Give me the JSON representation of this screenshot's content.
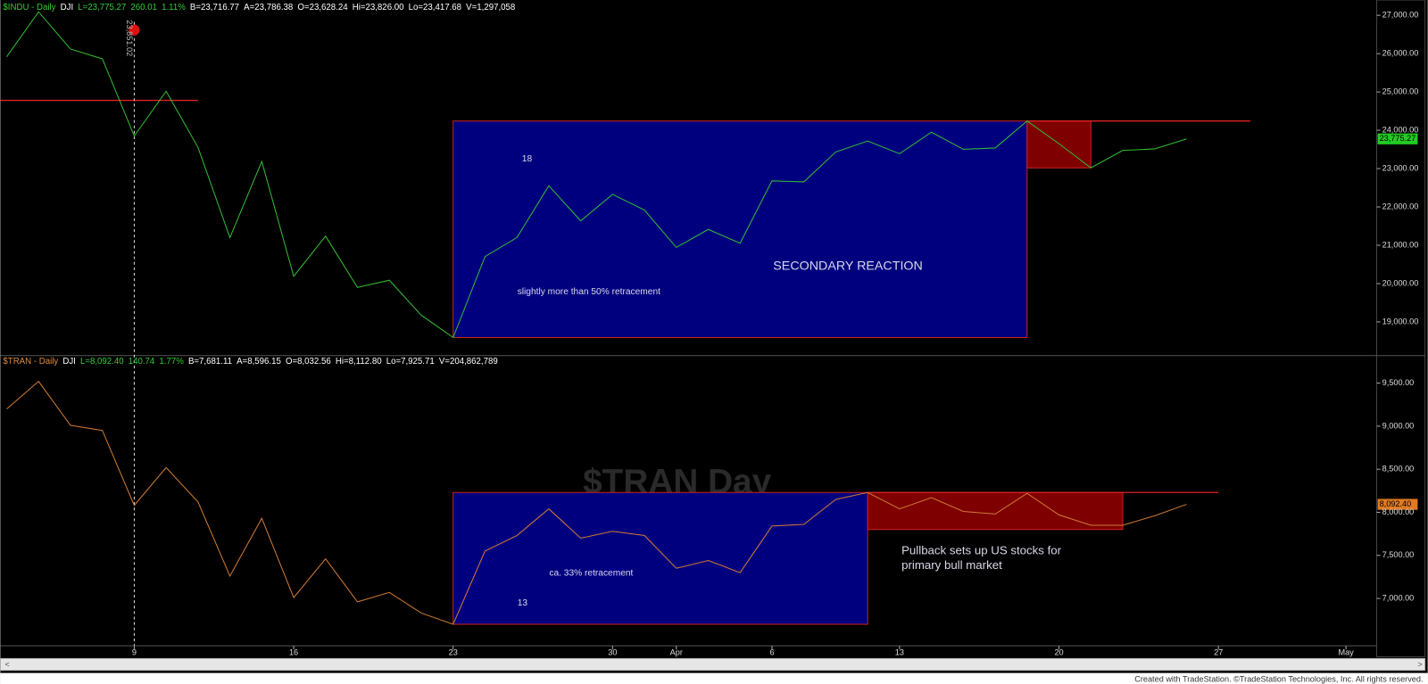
{
  "chart_data": [
    {
      "type": "line",
      "header": [
        {
          "text": "$INDU - Daily",
          "color": "#33cc33"
        },
        {
          "text": "DJI",
          "color": "#ffffff"
        },
        {
          "text": "L=23,775.27",
          "color": "#33cc33"
        },
        {
          "text": "260.01",
          "color": "#33cc33"
        },
        {
          "text": "1.11%",
          "color": "#33cc33"
        },
        {
          "text": "B=23,716.77",
          "color": "#ffffff"
        },
        {
          "text": "A=23,786.38",
          "color": "#ffffff"
        },
        {
          "text": "O=23,628.24",
          "color": "#ffffff"
        },
        {
          "text": "Hi=23,826.00",
          "color": "#ffffff"
        },
        {
          "text": "Lo=23,417.68",
          "color": "#ffffff"
        },
        {
          "text": "V=1,297,058",
          "color": "#ffffff"
        }
      ],
      "categories": [
        null,
        null,
        null,
        null,
        "9",
        null,
        null,
        null,
        null,
        "16",
        null,
        null,
        null,
        null,
        "23",
        null,
        null,
        null,
        null,
        "30",
        null,
        "Apr",
        null,
        null,
        "6",
        null,
        null,
        null,
        "13",
        null,
        null,
        null,
        null,
        "20",
        null,
        null,
        null,
        null,
        "27",
        null,
        null,
        null,
        "May"
      ],
      "series": [
        {
          "name": "$INDU",
          "color": "#33bb33",
          "values": [
            25917,
            27091,
            26121,
            25865,
            23851,
            25018,
            23553,
            21200,
            23185,
            20189,
            21237,
            19899,
            20087,
            19174,
            18592,
            20705,
            21200,
            22552,
            21637,
            22328,
            21917,
            20944,
            21413,
            21053,
            22680,
            22654,
            23434,
            23719,
            23390,
            23950,
            23504,
            23538,
            24242,
            23650,
            23019,
            23475,
            23515,
            23775.27,
            null,
            null,
            null,
            null,
            null
          ],
          "last_label": "23,775.27",
          "label_color": "#22cc22"
        }
      ],
      "ylim": [
        18190,
        27400
      ],
      "yticks": [
        {
          "value": 19000,
          "label": "19,000.00"
        },
        {
          "value": 20000,
          "label": "20,000.00"
        },
        {
          "value": 21000,
          "label": "21,000.00"
        },
        {
          "value": 22000,
          "label": "22,000.00"
        },
        {
          "value": 23000,
          "label": "23,000.00"
        },
        {
          "value": 24000,
          "label": "24,000.00"
        },
        {
          "value": 25000,
          "label": "25,000.00"
        },
        {
          "value": 26000,
          "label": "26,000.00"
        },
        {
          "value": 27000,
          "label": "27,000.00"
        }
      ],
      "boxes": [
        {
          "x": [
            14,
            32
          ],
          "y": [
            18592,
            24242
          ],
          "color": "#00007f"
        },
        {
          "x": [
            32,
            34
          ],
          "y": [
            23019,
            24242
          ],
          "color": "#7f0000"
        }
      ],
      "lines": [
        {
          "value": 24780,
          "x": [
            0,
            6
          ],
          "color": "#dd2222"
        },
        {
          "value": 24242,
          "x": [
            32,
            39
          ],
          "color": "#dd2222"
        }
      ],
      "annotations": [
        "18",
        "slightly more than 50% retracement",
        "SECONDARY REACTION"
      ],
      "cursor_label": "23,851.02"
    },
    {
      "type": "line",
      "header": [
        {
          "text": "$TRAN - Daily",
          "color": "#e08a3c"
        },
        {
          "text": "DJI",
          "color": "#ffffff"
        },
        {
          "text": "L=8,092.40",
          "color": "#33cc33"
        },
        {
          "text": "140.74",
          "color": "#33cc33"
        },
        {
          "text": "1.77%",
          "color": "#33cc33"
        },
        {
          "text": "B=7,681.11",
          "color": "#ffffff"
        },
        {
          "text": "A=8,596.15",
          "color": "#ffffff"
        },
        {
          "text": "O=8,032.56",
          "color": "#ffffff"
        },
        {
          "text": "Hi=8,112.80",
          "color": "#ffffff"
        },
        {
          "text": "Lo=7,925.71",
          "color": "#ffffff"
        },
        {
          "text": "V=204,862,789",
          "color": "#ffffff"
        }
      ],
      "watermark": "$TRAN Day",
      "categories": [
        null,
        null,
        null,
        null,
        "9",
        null,
        null,
        null,
        null,
        "16",
        null,
        null,
        null,
        null,
        "23",
        null,
        null,
        null,
        null,
        "30",
        null,
        "Apr",
        null,
        null,
        "6",
        null,
        null,
        null,
        "13",
        null,
        null,
        null,
        null,
        "20",
        null,
        null,
        null,
        null,
        "27",
        null,
        null,
        null,
        "May"
      ],
      "series": [
        {
          "name": "$TRAN",
          "color": "#d07a33",
          "values": [
            9200,
            9520,
            9010,
            8950,
            8080,
            8520,
            8120,
            7260,
            7930,
            7010,
            7460,
            6960,
            7070,
            6830,
            6700,
            7550,
            7730,
            8040,
            7700,
            7780,
            7730,
            7350,
            7440,
            7300,
            7840,
            7860,
            8150,
            8230,
            8040,
            8170,
            8010,
            7980,
            8220,
            7970,
            7850,
            7850,
            7960,
            8092.4,
            null,
            null,
            null,
            null,
            null
          ],
          "last_label": "8,092.40",
          "label_color": "#e07a22"
        }
      ],
      "ylim": [
        6450,
        9745
      ],
      "yticks": [
        {
          "value": 7000,
          "label": "7,000.00"
        },
        {
          "value": 7500,
          "label": "7,500.00"
        },
        {
          "value": 8000,
          "label": "8,000.00"
        },
        {
          "value": 8500,
          "label": "8,500.00"
        },
        {
          "value": 9000,
          "label": "9,000.00"
        },
        {
          "value": 9500,
          "label": "9,500.00"
        }
      ],
      "boxes": [
        {
          "x": [
            14,
            27
          ],
          "y": [
            6700,
            8230
          ],
          "color": "#00007f"
        },
        {
          "x": [
            27,
            35
          ],
          "y": [
            7800,
            8230
          ],
          "color": "#7f0000"
        }
      ],
      "lines": [
        {
          "value": 8230,
          "x": [
            27,
            38
          ],
          "color": "#dd2222"
        }
      ],
      "annotations": [
        "ca. 33% retracement",
        "13",
        "Pullback sets up US stocks for",
        "primary bull market"
      ]
    }
  ],
  "footer": "Created with TradeStation. ©TradeStation Technologies, Inc. All rights reserved."
}
